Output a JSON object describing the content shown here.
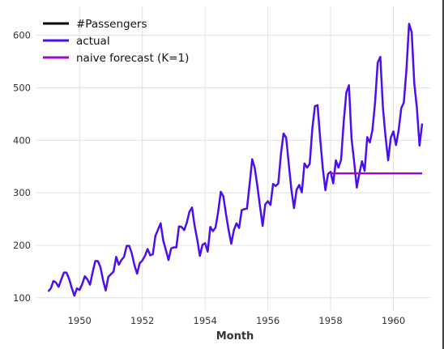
{
  "chart_data": {
    "type": "line",
    "xlabel": "Month",
    "ylabel": "",
    "xlim": [
      1948.6,
      1961.2
    ],
    "ylim": [
      75,
      655
    ],
    "grid": true,
    "legend_position": "top-left",
    "x_ticks": [
      1950,
      1952,
      1954,
      1956,
      1958,
      1960
    ],
    "y_ticks": [
      100,
      200,
      300,
      400,
      500,
      600
    ],
    "legend": [
      {
        "label": "#Passengers",
        "color": "#000000"
      },
      {
        "label": "actual",
        "color": "#4b0ef0"
      },
      {
        "label": "naive forecast (K=1)",
        "color": "#9b0ac6"
      }
    ],
    "series": [
      {
        "name": "actual",
        "color": "#4b0ef0",
        "x_start": 1949,
        "x_step_months": 1,
        "values": [
          112,
          118,
          132,
          129,
          121,
          135,
          148,
          148,
          136,
          119,
          104,
          118,
          115,
          126,
          141,
          135,
          125,
          149,
          170,
          170,
          158,
          133,
          114,
          140,
          145,
          150,
          178,
          163,
          172,
          178,
          199,
          199,
          184,
          162,
          146,
          166,
          171,
          180,
          193,
          181,
          183,
          218,
          230,
          242,
          209,
          191,
          172,
          194,
          196,
          196,
          236,
          235,
          229,
          243,
          264,
          272,
          237,
          211,
          180,
          201,
          204,
          188,
          235,
          227,
          234,
          264,
          302,
          293,
          259,
          229,
          203,
          229,
          242,
          233,
          267,
          269,
          270,
          315,
          364,
          347,
          312,
          274,
          237,
          278,
          284,
          277,
          317,
          313,
          318,
          374,
          413,
          405,
          355,
          306,
          271,
          306,
          315,
          301,
          356,
          348,
          355,
          422,
          465,
          467,
          404,
          347,
          305,
          336,
          340,
          318,
          362,
          348,
          363,
          435,
          491,
          505,
          404,
          359,
          310,
          337,
          360,
          342,
          406,
          396,
          420,
          472,
          548,
          559,
          463,
          407,
          362,
          405,
          417,
          391,
          419,
          461,
          472,
          535,
          622,
          606,
          508,
          461,
          390,
          432
        ]
      },
      {
        "name": "naive forecast (K=1)",
        "color": "#9b0ac6",
        "x": [
          1958.0,
          1960.917
        ],
        "values": [
          337,
          337
        ]
      }
    ]
  }
}
